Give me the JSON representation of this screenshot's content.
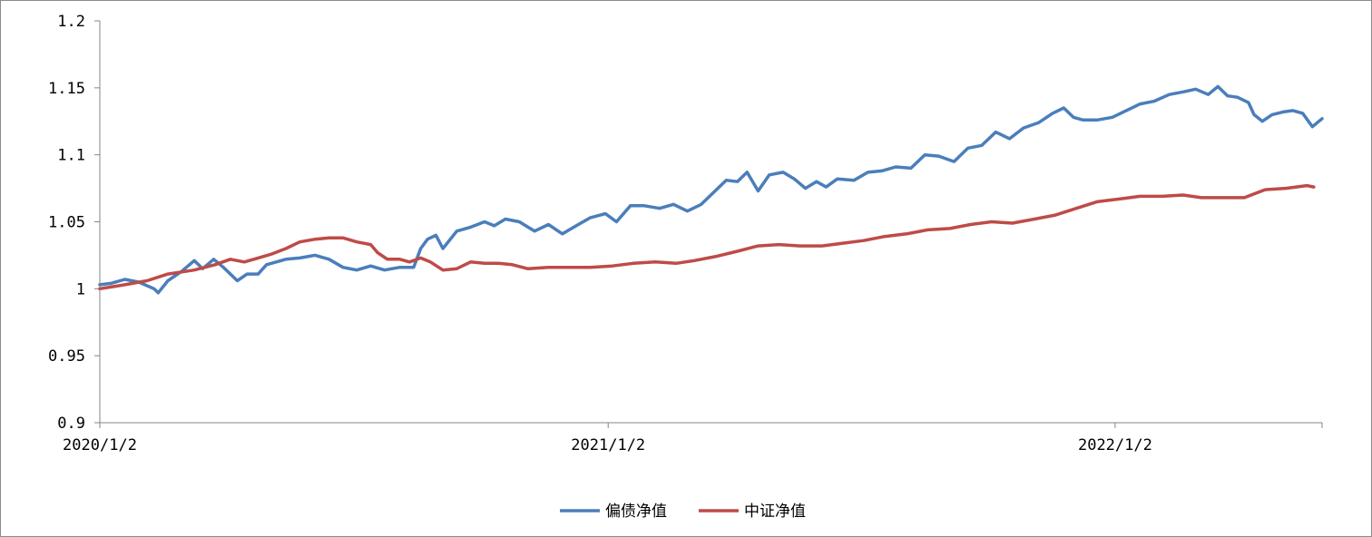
{
  "chart_data": {
    "type": "line",
    "title": "",
    "xlabel": "",
    "ylabel": "",
    "ylim": [
      0.9,
      1.2
    ],
    "y_ticks": [
      "0.9",
      "0.95",
      "1",
      "1.05",
      "1.1",
      "1.15",
      "1.2"
    ],
    "y_tick_values": [
      0.9,
      0.95,
      1.0,
      1.05,
      1.1,
      1.15,
      1.2
    ],
    "x_tick_labels": [
      "2020/1/2",
      "2021/1/2",
      "2022/1/2"
    ],
    "x_tick_dates": [
      "2020-01-02",
      "2021-01-02",
      "2022-01-02"
    ],
    "x_range": [
      "2020-01-02",
      "2022-05-31"
    ],
    "legend_position": "bottom",
    "grid": false,
    "series": [
      {
        "name": "偏债净值",
        "color": "#4a7ebb",
        "points": [
          [
            "2020-01-02",
            1.003
          ],
          [
            "2020-01-10",
            1.004
          ],
          [
            "2020-01-20",
            1.007
          ],
          [
            "2020-01-30",
            1.005
          ],
          [
            "2020-02-10",
            1.0
          ],
          [
            "2020-02-13",
            0.997
          ],
          [
            "2020-02-20",
            1.006
          ],
          [
            "2020-03-01",
            1.013
          ],
          [
            "2020-03-10",
            1.021
          ],
          [
            "2020-03-16",
            1.015
          ],
          [
            "2020-03-24",
            1.022
          ],
          [
            "2020-03-31",
            1.016
          ],
          [
            "2020-04-10",
            1.006
          ],
          [
            "2020-04-17",
            1.011
          ],
          [
            "2020-04-25",
            1.011
          ],
          [
            "2020-05-01",
            1.018
          ],
          [
            "2020-05-15",
            1.022
          ],
          [
            "2020-05-25",
            1.023
          ],
          [
            "2020-06-05",
            1.025
          ],
          [
            "2020-06-15",
            1.022
          ],
          [
            "2020-06-25",
            1.016
          ],
          [
            "2020-07-05",
            1.014
          ],
          [
            "2020-07-15",
            1.017
          ],
          [
            "2020-07-25",
            1.014
          ],
          [
            "2020-08-05",
            1.016
          ],
          [
            "2020-08-15",
            1.016
          ],
          [
            "2020-08-20",
            1.03
          ],
          [
            "2020-08-25",
            1.037
          ],
          [
            "2020-08-31",
            1.04
          ],
          [
            "2020-09-05",
            1.03
          ],
          [
            "2020-09-15",
            1.043
          ],
          [
            "2020-09-25",
            1.046
          ],
          [
            "2020-10-05",
            1.05
          ],
          [
            "2020-10-12",
            1.047
          ],
          [
            "2020-10-20",
            1.052
          ],
          [
            "2020-10-30",
            1.05
          ],
          [
            "2020-11-10",
            1.043
          ],
          [
            "2020-11-20",
            1.048
          ],
          [
            "2020-11-30",
            1.041
          ],
          [
            "2020-12-10",
            1.047
          ],
          [
            "2020-12-20",
            1.053
          ],
          [
            "2020-12-31",
            1.056
          ],
          [
            "2021-01-08",
            1.05
          ],
          [
            "2021-01-18",
            1.062
          ],
          [
            "2021-01-28",
            1.062
          ],
          [
            "2021-02-08",
            1.06
          ],
          [
            "2021-02-18",
            1.063
          ],
          [
            "2021-02-28",
            1.058
          ],
          [
            "2021-03-10",
            1.063
          ],
          [
            "2021-03-20",
            1.073
          ],
          [
            "2021-03-28",
            1.081
          ],
          [
            "2021-04-05",
            1.08
          ],
          [
            "2021-04-12",
            1.087
          ],
          [
            "2021-04-20",
            1.073
          ],
          [
            "2021-04-28",
            1.085
          ],
          [
            "2021-05-08",
            1.087
          ],
          [
            "2021-05-16",
            1.082
          ],
          [
            "2021-05-24",
            1.075
          ],
          [
            "2021-06-01",
            1.08
          ],
          [
            "2021-06-08",
            1.076
          ],
          [
            "2021-06-16",
            1.082
          ],
          [
            "2021-06-28",
            1.081
          ],
          [
            "2021-07-08",
            1.087
          ],
          [
            "2021-07-18",
            1.088
          ],
          [
            "2021-07-28",
            1.091
          ],
          [
            "2021-08-08",
            1.09
          ],
          [
            "2021-08-18",
            1.1
          ],
          [
            "2021-08-28",
            1.099
          ],
          [
            "2021-09-08",
            1.095
          ],
          [
            "2021-09-18",
            1.105
          ],
          [
            "2021-09-28",
            1.107
          ],
          [
            "2021-10-08",
            1.117
          ],
          [
            "2021-10-18",
            1.112
          ],
          [
            "2021-10-28",
            1.12
          ],
          [
            "2021-11-08",
            1.124
          ],
          [
            "2021-11-18",
            1.131
          ],
          [
            "2021-11-26",
            1.135
          ],
          [
            "2021-12-03",
            1.128
          ],
          [
            "2021-12-10",
            1.126
          ],
          [
            "2021-12-20",
            1.126
          ],
          [
            "2021-12-31",
            1.128
          ],
          [
            "2022-01-10",
            1.133
          ],
          [
            "2022-01-20",
            1.138
          ],
          [
            "2022-01-30",
            1.14
          ],
          [
            "2022-02-10",
            1.145
          ],
          [
            "2022-02-20",
            1.147
          ],
          [
            "2022-03-01",
            1.149
          ],
          [
            "2022-03-10",
            1.145
          ],
          [
            "2022-03-17",
            1.151
          ],
          [
            "2022-03-24",
            1.144
          ],
          [
            "2022-03-31",
            1.143
          ],
          [
            "2022-04-08",
            1.139
          ],
          [
            "2022-04-12",
            1.13
          ],
          [
            "2022-04-18",
            1.125
          ],
          [
            "2022-04-25",
            1.13
          ],
          [
            "2022-05-03",
            1.132
          ],
          [
            "2022-05-10",
            1.133
          ],
          [
            "2022-05-17",
            1.131
          ],
          [
            "2022-05-24",
            1.121
          ],
          [
            "2022-05-31",
            1.127
          ]
        ]
      },
      {
        "name": "中证净值",
        "color": "#be4b48",
        "points": [
          [
            "2020-01-02",
            1.0
          ],
          [
            "2020-01-20",
            1.003
          ],
          [
            "2020-02-05",
            1.006
          ],
          [
            "2020-02-20",
            1.011
          ],
          [
            "2020-03-10",
            1.014
          ],
          [
            "2020-03-25",
            1.018
          ],
          [
            "2020-04-05",
            1.022
          ],
          [
            "2020-04-15",
            1.02
          ],
          [
            "2020-04-25",
            1.023
          ],
          [
            "2020-05-05",
            1.026
          ],
          [
            "2020-05-15",
            1.03
          ],
          [
            "2020-05-25",
            1.035
          ],
          [
            "2020-06-05",
            1.037
          ],
          [
            "2020-06-15",
            1.038
          ],
          [
            "2020-06-25",
            1.038
          ],
          [
            "2020-07-05",
            1.035
          ],
          [
            "2020-07-15",
            1.033
          ],
          [
            "2020-07-20",
            1.027
          ],
          [
            "2020-07-27",
            1.022
          ],
          [
            "2020-08-05",
            1.022
          ],
          [
            "2020-08-12",
            1.02
          ],
          [
            "2020-08-20",
            1.023
          ],
          [
            "2020-08-27",
            1.02
          ],
          [
            "2020-09-05",
            1.014
          ],
          [
            "2020-09-15",
            1.015
          ],
          [
            "2020-09-25",
            1.02
          ],
          [
            "2020-10-05",
            1.019
          ],
          [
            "2020-10-15",
            1.019
          ],
          [
            "2020-10-25",
            1.018
          ],
          [
            "2020-11-05",
            1.015
          ],
          [
            "2020-11-20",
            1.016
          ],
          [
            "2020-12-05",
            1.016
          ],
          [
            "2020-12-20",
            1.016
          ],
          [
            "2021-01-05",
            1.017
          ],
          [
            "2021-01-20",
            1.019
          ],
          [
            "2021-02-05",
            1.02
          ],
          [
            "2021-02-20",
            1.019
          ],
          [
            "2021-03-05",
            1.021
          ],
          [
            "2021-03-20",
            1.024
          ],
          [
            "2021-04-05",
            1.028
          ],
          [
            "2021-04-20",
            1.032
          ],
          [
            "2021-05-05",
            1.033
          ],
          [
            "2021-05-20",
            1.032
          ],
          [
            "2021-06-05",
            1.032
          ],
          [
            "2021-06-20",
            1.034
          ],
          [
            "2021-07-05",
            1.036
          ],
          [
            "2021-07-20",
            1.039
          ],
          [
            "2021-08-05",
            1.041
          ],
          [
            "2021-08-20",
            1.044
          ],
          [
            "2021-09-05",
            1.045
          ],
          [
            "2021-09-20",
            1.048
          ],
          [
            "2021-10-05",
            1.05
          ],
          [
            "2021-10-20",
            1.049
          ],
          [
            "2021-11-05",
            1.052
          ],
          [
            "2021-11-20",
            1.055
          ],
          [
            "2021-12-05",
            1.06
          ],
          [
            "2021-12-20",
            1.065
          ],
          [
            "2022-01-05",
            1.067
          ],
          [
            "2022-01-20",
            1.069
          ],
          [
            "2022-02-05",
            1.069
          ],
          [
            "2022-02-20",
            1.07
          ],
          [
            "2022-03-05",
            1.068
          ],
          [
            "2022-03-20",
            1.068
          ],
          [
            "2022-04-05",
            1.068
          ],
          [
            "2022-04-20",
            1.074
          ],
          [
            "2022-05-05",
            1.075
          ],
          [
            "2022-05-20",
            1.077
          ],
          [
            "2022-05-25",
            1.076
          ]
        ]
      }
    ]
  }
}
